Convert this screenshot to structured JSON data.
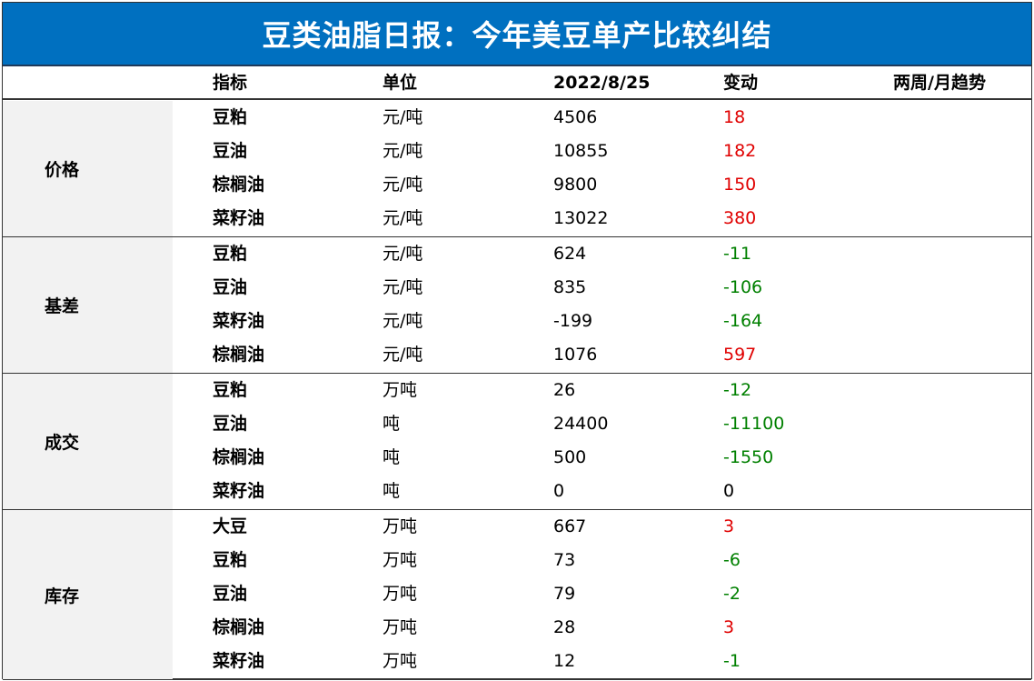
{
  "title": "豆类油脂日报：今年美豆单产比较纠结",
  "headers": {
    "indicator": "指标",
    "unit": "单位",
    "date": "2022/8/25",
    "change": "变动",
    "trend": "两周/月趋势"
  },
  "groups": [
    {
      "category": "价格",
      "rows": [
        {
          "name": "豆粕",
          "unit": "元/吨",
          "value": "4506",
          "change": "18",
          "sign": "pos"
        },
        {
          "name": "豆油",
          "unit": "元/吨",
          "value": "10855",
          "change": "182",
          "sign": "pos"
        },
        {
          "name": "棕榈油",
          "unit": "元/吨",
          "value": "9800",
          "change": "150",
          "sign": "pos"
        },
        {
          "name": "菜籽油",
          "unit": "元/吨",
          "value": "13022",
          "change": "380",
          "sign": "pos"
        }
      ]
    },
    {
      "category": "基差",
      "rows": [
        {
          "name": "豆粕",
          "unit": "元/吨",
          "value": "624",
          "change": "-11",
          "sign": "neg"
        },
        {
          "name": "豆油",
          "unit": "元/吨",
          "value": "835",
          "change": "-106",
          "sign": "neg"
        },
        {
          "name": "菜籽油",
          "unit": "元/吨",
          "value": "-199",
          "change": "-164",
          "sign": "neg"
        },
        {
          "name": "棕榈油",
          "unit": "元/吨",
          "value": "1076",
          "change": "597",
          "sign": "pos"
        }
      ]
    },
    {
      "category": "成交",
      "rows": [
        {
          "name": "豆粕",
          "unit": "万吨",
          "value": "26",
          "change": "-12",
          "sign": "neg"
        },
        {
          "name": "豆油",
          "unit": "吨",
          "value": "24400",
          "change": "-11100",
          "sign": "neg"
        },
        {
          "name": "棕榈油",
          "unit": "吨",
          "value": "500",
          "change": "-1550",
          "sign": "neg"
        },
        {
          "name": "菜籽油",
          "unit": "吨",
          "value": "0",
          "change": "0",
          "sign": "zero"
        }
      ]
    },
    {
      "category": "库存",
      "rows": [
        {
          "name": "大豆",
          "unit": "万吨",
          "value": "667",
          "change": "3",
          "sign": "pos"
        },
        {
          "name": "豆粕",
          "unit": "万吨",
          "value": "73",
          "change": "-6",
          "sign": "neg"
        },
        {
          "name": "豆油",
          "unit": "万吨",
          "value": "79",
          "change": "-2",
          "sign": "neg"
        },
        {
          "name": "棕榈油",
          "unit": "万吨",
          "value": "28",
          "change": "3",
          "sign": "pos"
        },
        {
          "name": "菜籽油",
          "unit": "万吨",
          "value": "12",
          "change": "-1",
          "sign": "neg"
        }
      ]
    }
  ],
  "colors": {
    "title_bg": "#0070c0",
    "increase": "#e00000",
    "decrease": "#008000",
    "category_bg": "#f2f2f2"
  }
}
